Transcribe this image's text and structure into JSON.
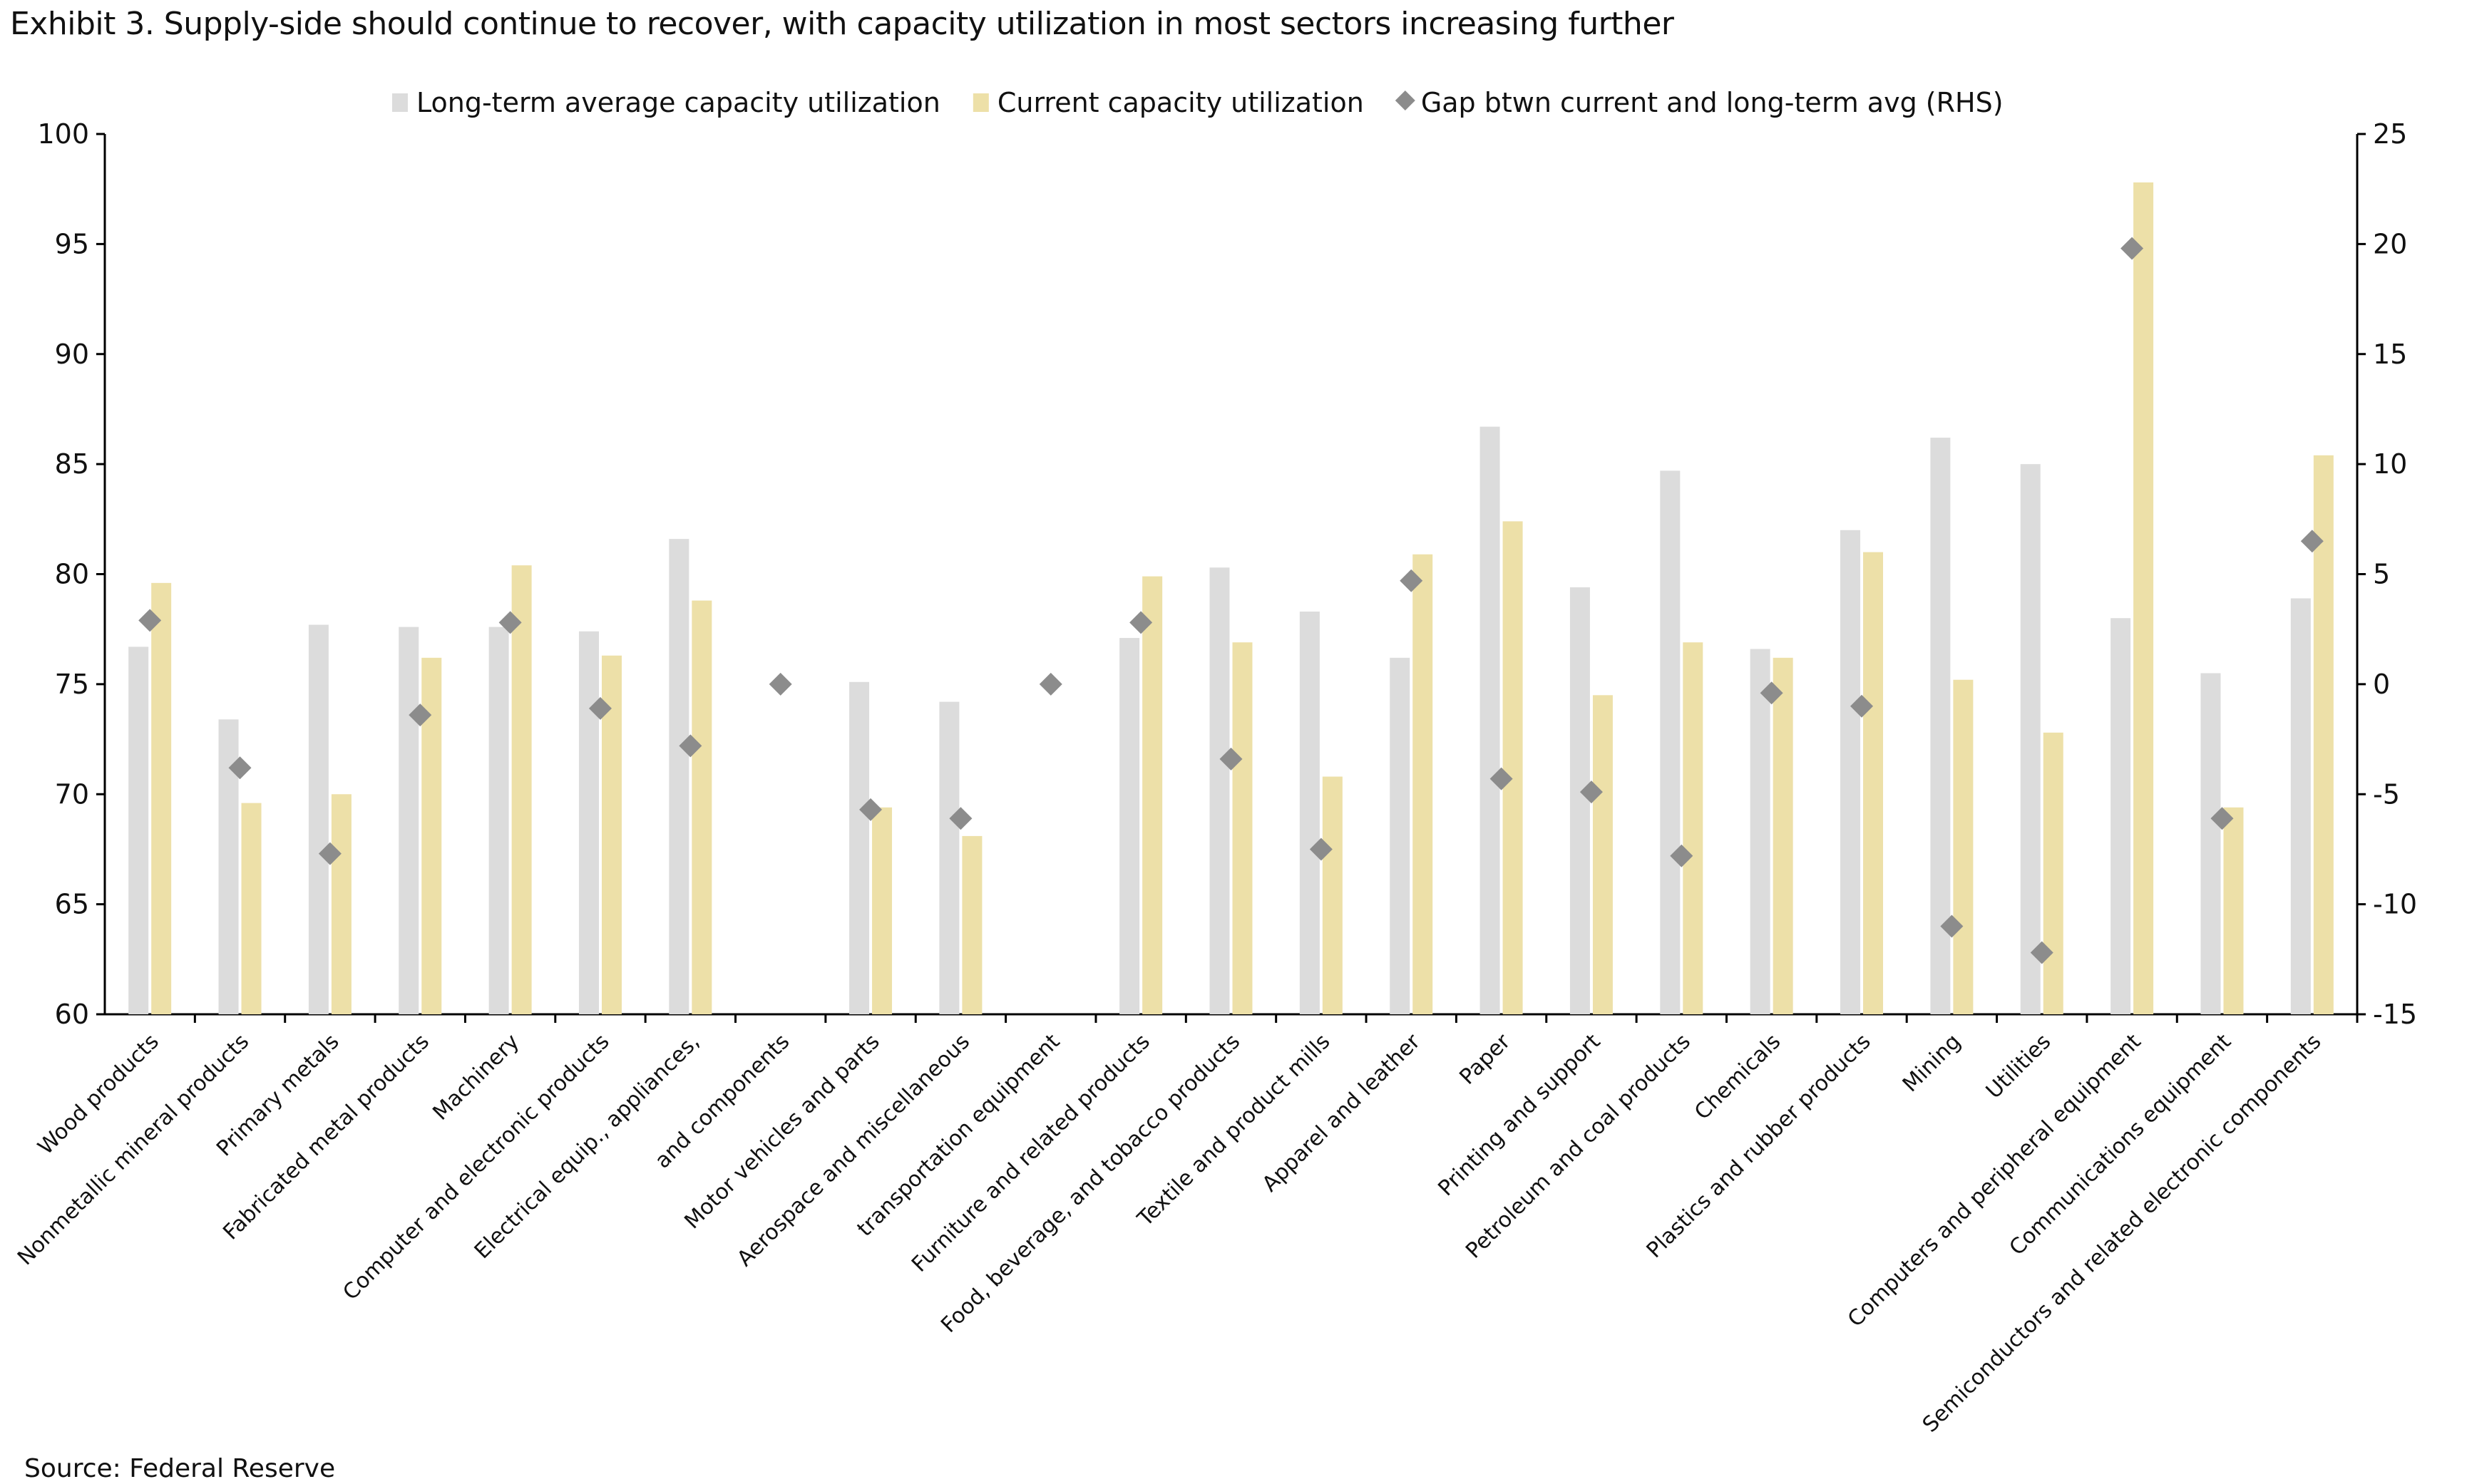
{
  "title": "Exhibit 3. Supply-side should continue to recover, with capacity utilization in most sectors increasing further",
  "source": "Source: Federal Reserve",
  "chart_data": {
    "type": "bar",
    "title": "Exhibit 3. Supply-side should continue to recover, with capacity utilization in most sectors increasing further",
    "categories": [
      "Wood products",
      "Nonmetallic mineral products",
      "Primary metals",
      "Fabricated metal products",
      "Machinery",
      "Computer and electronic products",
      "Electrical equip., appliances,",
      "and components",
      "Motor vehicles and parts",
      "Aerospace and miscellaneous",
      "transportation equipment",
      "Furniture and related products",
      "Food, beverage, and tobacco products",
      "Textile and product mills",
      "Apparel and leather",
      "Paper",
      "Printing and support",
      "Petroleum and coal products",
      "Chemicals",
      "Plastics and rubber products",
      "Mining",
      "Utilities",
      "Computers and peripheral equipment",
      "Communications equipment",
      "Semiconductors and related electronic components"
    ],
    "series": [
      {
        "name": "Long-term average capacity utilization",
        "type": "bar",
        "axis": "left",
        "color": "#dcdcdc",
        "values": [
          76.7,
          73.4,
          77.7,
          77.6,
          77.6,
          77.4,
          81.6,
          null,
          75.1,
          74.2,
          null,
          77.1,
          80.3,
          78.3,
          76.2,
          86.7,
          79.4,
          84.7,
          76.6,
          82.0,
          86.2,
          85.0,
          78.0,
          75.5,
          78.9
        ]
      },
      {
        "name": "Current capacity utilization",
        "type": "bar",
        "axis": "left",
        "color": "#ede0a8",
        "values": [
          79.6,
          69.6,
          70.0,
          76.2,
          80.4,
          76.3,
          78.8,
          null,
          69.4,
          68.1,
          null,
          79.9,
          76.9,
          70.8,
          80.9,
          82.4,
          74.5,
          76.9,
          76.2,
          81.0,
          75.2,
          72.8,
          97.8,
          69.4,
          85.4
        ]
      },
      {
        "name": "Gap btwn current and long-term avg (RHS)",
        "type": "scatter",
        "axis": "right",
        "color": "#8c8c8c",
        "values": [
          2.9,
          -3.8,
          -7.7,
          -1.4,
          2.8,
          -1.1,
          -2.8,
          0,
          -5.7,
          -6.1,
          0,
          2.8,
          -3.4,
          -7.5,
          4.7,
          -4.3,
          -4.9,
          -7.8,
          -0.4,
          -1.0,
          -11.0,
          -12.2,
          19.8,
          -6.1,
          6.5
        ]
      }
    ],
    "y_left": {
      "range": [
        60,
        100
      ],
      "ticks": [
        "60",
        "65",
        "70",
        "75",
        "80",
        "85",
        "90",
        "95",
        "100"
      ]
    },
    "y_right": {
      "range": [
        -15,
        25
      ],
      "ticks": [
        "-15",
        "-10",
        "-5",
        "0",
        "5",
        "10",
        "15",
        "20",
        "25"
      ]
    },
    "legend": "top",
    "grid": false
  }
}
